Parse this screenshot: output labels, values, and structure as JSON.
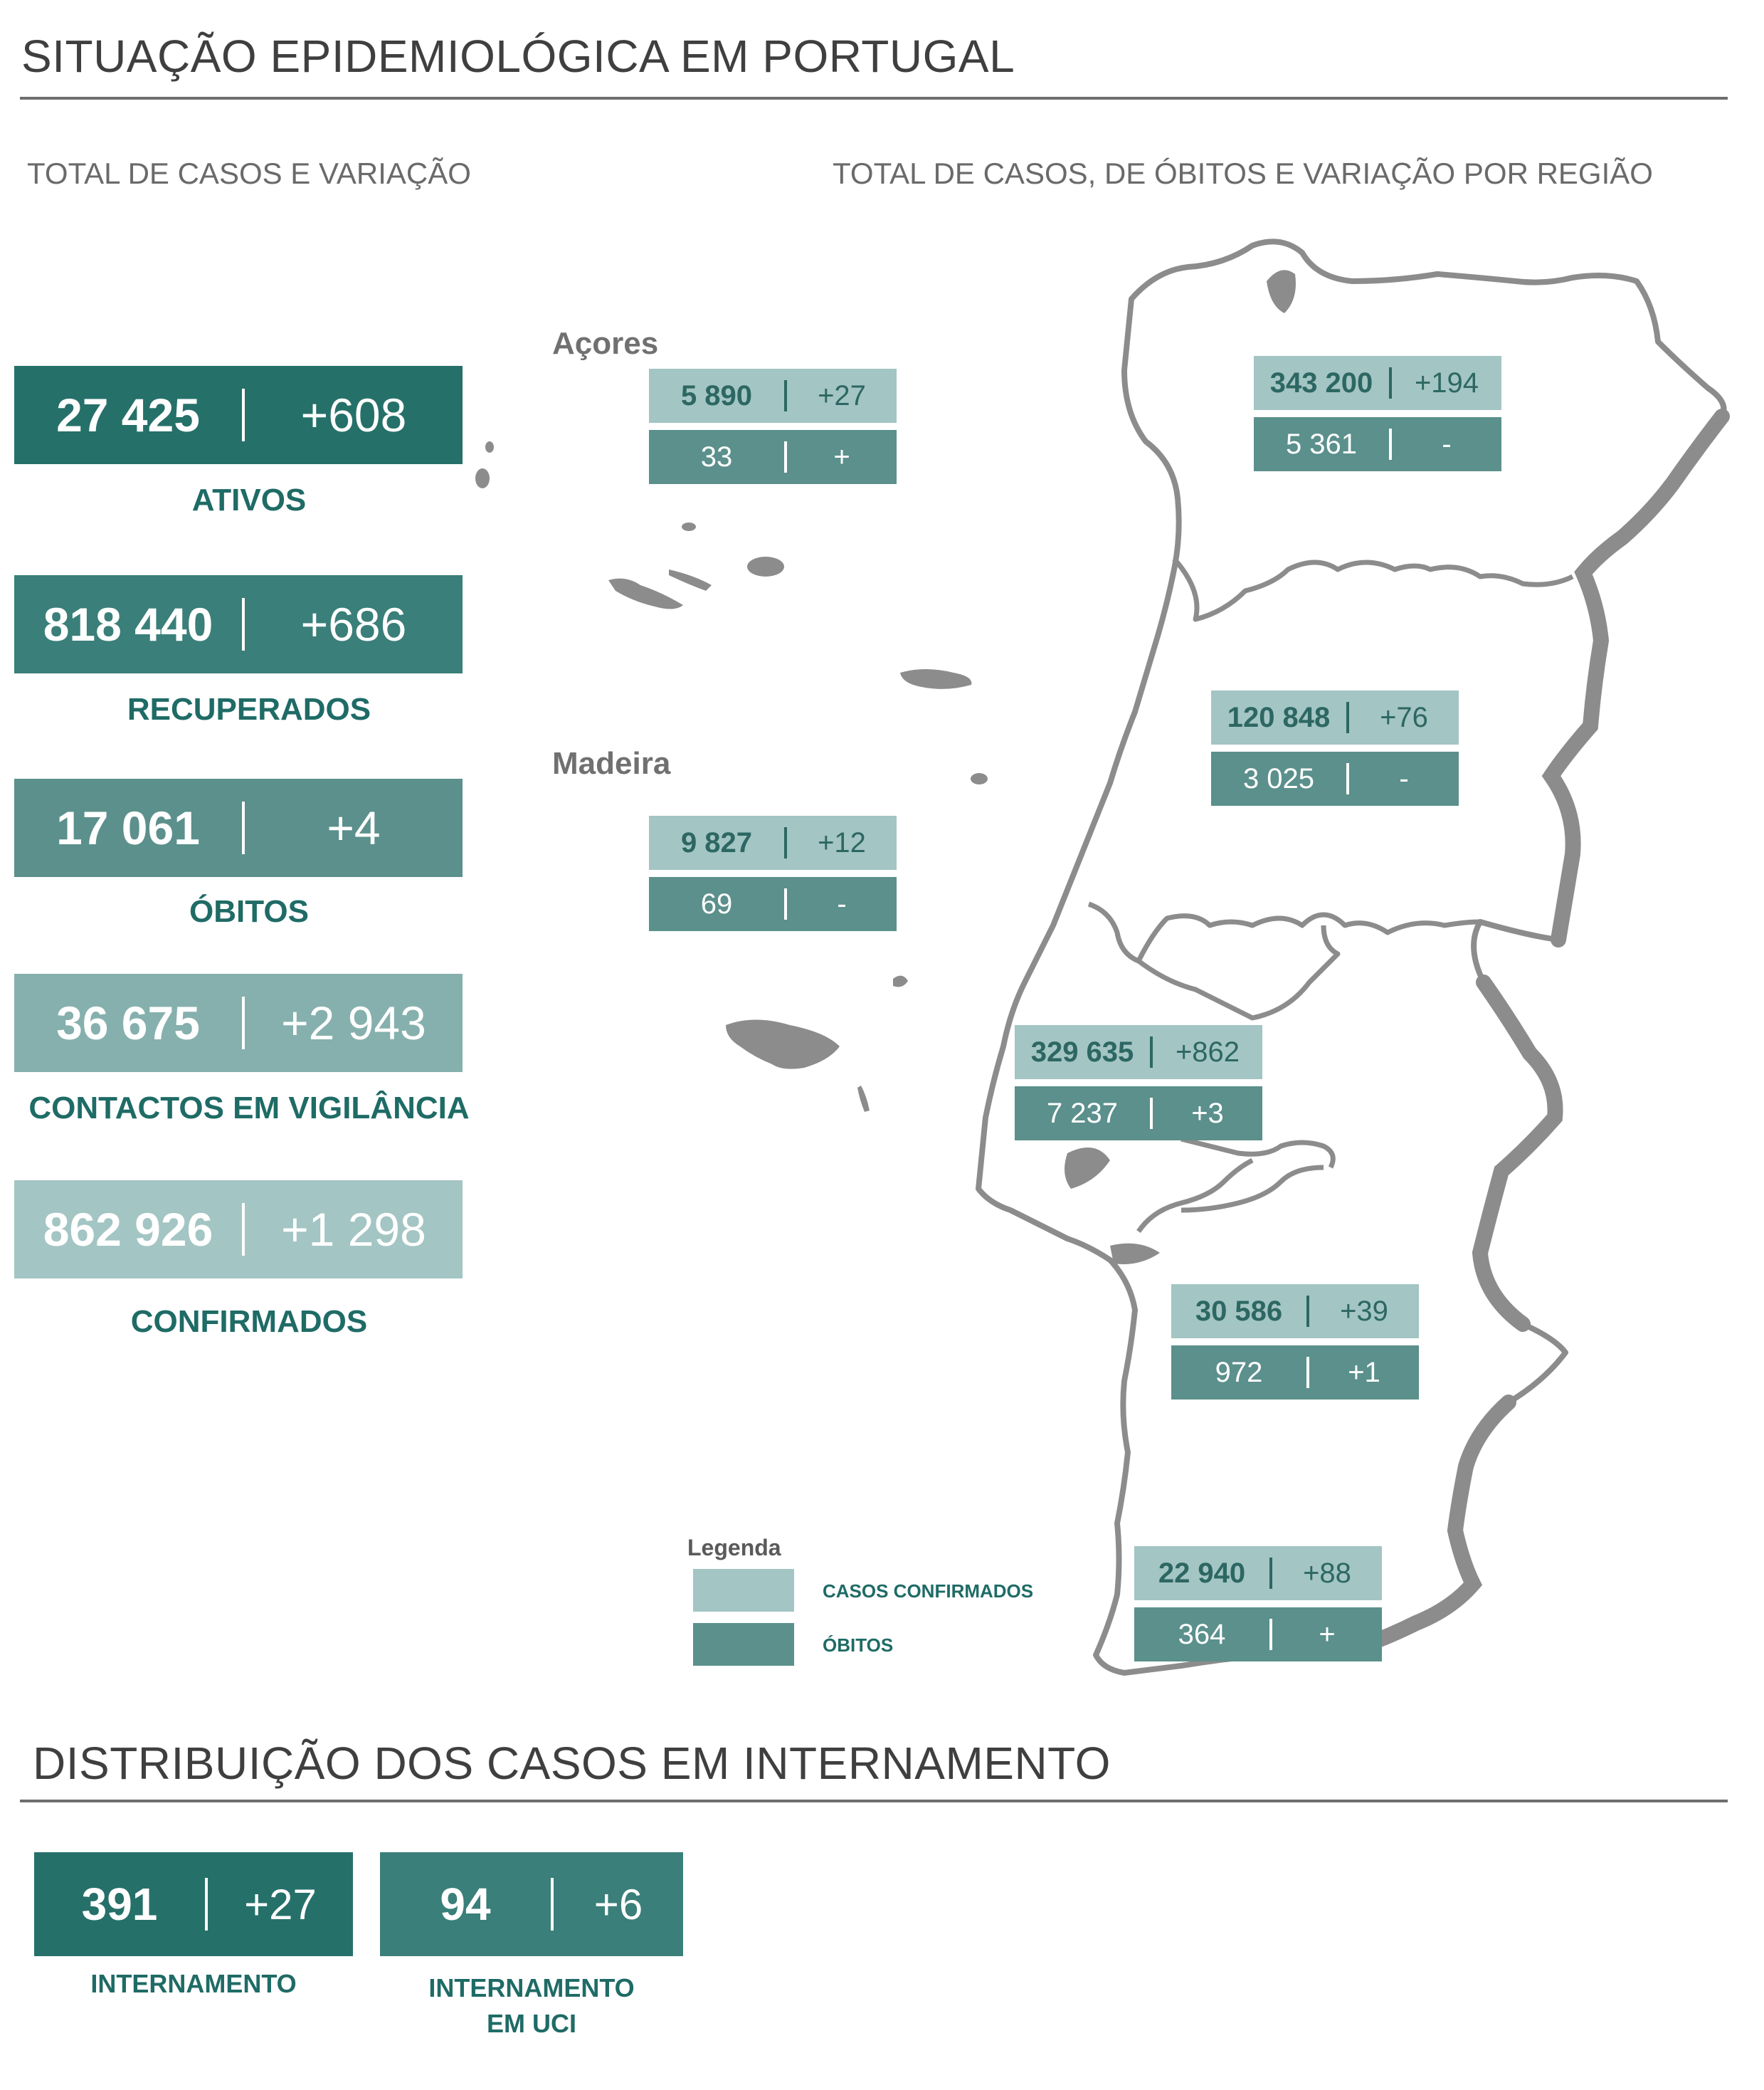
{
  "header": {
    "title": "SITUAÇÃO EPIDEMIOLÓGICA EM PORTUGAL"
  },
  "left_section": {
    "title": "TOTAL DE CASOS E VARIAÇÃO"
  },
  "map_section": {
    "title": "TOTAL DE CASOS, DE ÓBITOS E VARIAÇÃO POR REGIÃO"
  },
  "totals": [
    {
      "value": "27 425",
      "change": "+608",
      "label": "ATIVOS",
      "color": "#26706a"
    },
    {
      "value": "818 440",
      "change": "+686",
      "label": "RECUPERADOS",
      "color": "#3a7f79"
    },
    {
      "value": "17 061",
      "change": "+4",
      "label": "ÓBITOS",
      "color": "#5b908c"
    },
    {
      "value": "36 675",
      "change": "+2 943",
      "label": "CONTACTOS EM VIGILÂNCIA",
      "color": "#85b0ad"
    },
    {
      "value": "862 926",
      "change": "+1 298",
      "label": "CONFIRMADOS",
      "color": "#a3c5c3"
    }
  ],
  "islands": {
    "azores": "Açores",
    "madeira": "Madeira"
  },
  "regions": [
    {
      "cases": "5 890",
      "cases_change": "+27",
      "deaths": "33",
      "deaths_change": "+"
    },
    {
      "cases": "9 827",
      "cases_change": "+12",
      "deaths": "69",
      "deaths_change": "-"
    },
    {
      "cases": "343 200",
      "cases_change": "+194",
      "deaths": "5 361",
      "deaths_change": "-"
    },
    {
      "cases": "120 848",
      "cases_change": "+76",
      "deaths": "3 025",
      "deaths_change": "-"
    },
    {
      "cases": "329 635",
      "cases_change": "+862",
      "deaths": "7 237",
      "deaths_change": "+3"
    },
    {
      "cases": "30 586",
      "cases_change": "+39",
      "deaths": "972",
      "deaths_change": "+1"
    },
    {
      "cases": "22 940",
      "cases_change": "+88",
      "deaths": "364",
      "deaths_change": "+"
    }
  ],
  "legend": {
    "title": "Legenda",
    "cases_label": "CASOS CONFIRMADOS",
    "deaths_label": "ÓBITOS",
    "cases_color": "#a3c5c3",
    "deaths_color": "#5b908c"
  },
  "hospital_section": {
    "title": "DISTRIBUIÇÃO DOS CASOS EM INTERNAMENTO"
  },
  "hospital": [
    {
      "value": "391",
      "change": "+27",
      "label_line1": "INTERNAMENTO",
      "label_line2": "",
      "color": "#26706a"
    },
    {
      "value": "94",
      "change": "+6",
      "label_line1": "INTERNAMENTO",
      "label_line2": "EM UCI",
      "color": "#3a7f79"
    }
  ]
}
